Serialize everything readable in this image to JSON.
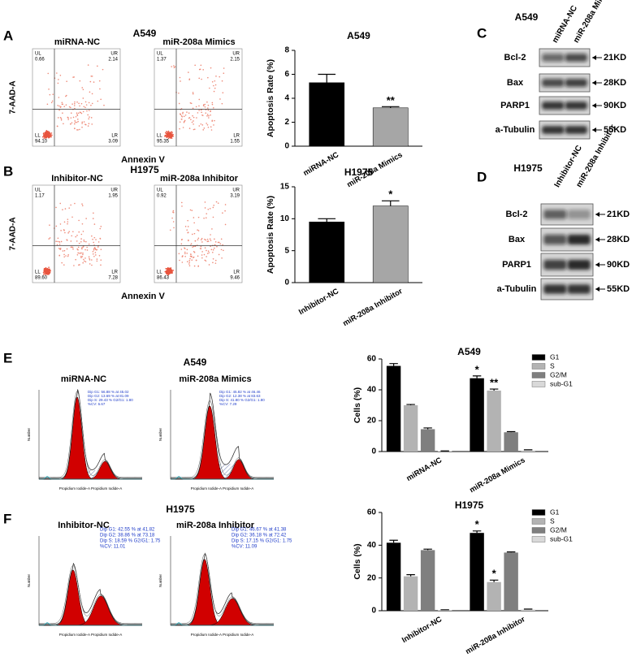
{
  "panel_labels": [
    "A",
    "B",
    "C",
    "D",
    "E",
    "F"
  ],
  "flow": [
    {
      "title": "A549",
      "y_label": "7-AAD-A",
      "x_label": "Annexin V",
      "plots": [
        {
          "name": "miRNA-NC",
          "quadrants": [
            [
              "UL",
              "0.66"
            ],
            [
              "UR",
              "2.14"
            ],
            [
              "LL",
              "94.10"
            ],
            [
              "LR",
              "3.09"
            ]
          ]
        },
        {
          "name": "miR-208a Mimics",
          "quadrants": [
            [
              "UL",
              "1.37"
            ],
            [
              "UR",
              "2.15"
            ],
            [
              "LL",
              "95.35"
            ],
            [
              "LR",
              "1.55"
            ]
          ]
        }
      ]
    },
    {
      "title": "H1975",
      "y_label": "7-AAD-A",
      "x_label": "Annexin V",
      "plots": [
        {
          "name": "Inhibitor-NC",
          "quadrants": [
            [
              "UL",
              "1.17"
            ],
            [
              "UR",
              "1.95"
            ],
            [
              "LL",
              "89.60"
            ],
            [
              "LR",
              "7.28"
            ]
          ]
        },
        {
          "name": "miR-208a Inhibitor",
          "quadrants": [
            [
              "UL",
              "0.92"
            ],
            [
              "UR",
              "3.19"
            ],
            [
              "LL",
              "86.43"
            ],
            [
              "LR",
              "9.46"
            ]
          ]
        }
      ]
    }
  ],
  "blots": [
    {
      "title": "A549",
      "columns": [
        "miRNA-NC",
        "miR-208a Mimics"
      ],
      "rows": [
        {
          "protein": "Bcl-2",
          "size": "21KD"
        },
        {
          "protein": "Bax",
          "size": "28KD"
        },
        {
          "protein": "PARP1",
          "size": "90KD"
        },
        {
          "protein": "a-Tubulin",
          "size": "55KD"
        }
      ]
    },
    {
      "title": "H1975",
      "columns": [
        "Inhibitor-NC",
        "miR-208a Inhibitor"
      ],
      "rows": [
        {
          "protein": "Bcl-2",
          "size": "21KD"
        },
        {
          "protein": "Bax",
          "size": "28KD"
        },
        {
          "protein": "PARP1",
          "size": "90KD"
        },
        {
          "protein": "a-Tubulin",
          "size": "55KD"
        }
      ]
    }
  ],
  "cell_cycle": [
    {
      "title": "A549",
      "x_label": "Propidium Iodide-A Propidium Iodide-A",
      "y_label": "Number",
      "plots": [
        {
          "name": "miRNA-NC",
          "stats": [
            "Dip G1: 56.88 % at 45.02",
            "Dip G2: 13.69 % at 81.09",
            "Dip S: 29.43 %  G2/G1: 1.80",
            "%CV: 6.67"
          ]
        },
        {
          "name": "miR-208a Mimics",
          "stats": [
            "Dip G1: 45.82 % at 46.46",
            "Dip G2: 12.38 % at 83.63",
            "Dip S: 41.80 %  G2/G1: 1.80",
            "%CV: 7.29"
          ]
        }
      ]
    },
    {
      "title": "H1975",
      "x_label": "Propidium Iodide-A Propidium Iodide-A",
      "y_label": "Number",
      "plots": [
        {
          "name": "Inhibitor-NC",
          "stats": [
            "Dip G1: 42.55 % at 41.82",
            "Dip G2: 38.86 % at 73.18",
            "Dip S: 18.59 %  G2/G1: 1.75",
            "%CV: 11.01"
          ]
        },
        {
          "name": "miR-208a Inhibitor",
          "stats": [
            "Dip G1: 46.67 % at 41.38",
            "Dip G2: 36.18 % at 72.42",
            "Dip S: 17.15 %  G2/G1: 1.75",
            "%CV: 11.09"
          ]
        }
      ]
    }
  ],
  "chart_data": [
    {
      "type": "bar",
      "title": "A549",
      "y_label": "Apoptosis Rate (%)",
      "categories": [
        "miRNA-NC",
        "miR-208a Mimics"
      ],
      "values": [
        5.3,
        3.2
      ],
      "errors": [
        0.7,
        0.1
      ],
      "colors": [
        "#000000",
        "#a6a6a6"
      ],
      "ylim": [
        0,
        8
      ],
      "yticks": [
        0,
        2,
        4,
        6,
        8
      ],
      "annotations": [
        {
          "text": "**",
          "category": "miR-208a Mimics"
        }
      ]
    },
    {
      "type": "bar",
      "title": "H1975",
      "y_label": "Apoptosis Rate (%)",
      "categories": [
        "Inhibitor-NC",
        "miR-208a Inhibitor"
      ],
      "values": [
        9.5,
        12.0
      ],
      "errors": [
        0.5,
        0.8
      ],
      "colors": [
        "#000000",
        "#a6a6a6"
      ],
      "ylim": [
        0,
        15
      ],
      "yticks": [
        0,
        5,
        10,
        15
      ],
      "annotations": [
        {
          "text": "*",
          "category": "miR-208a Inhibitor"
        }
      ]
    },
    {
      "type": "grouped_bar",
      "title": "A549",
      "y_label": "Cells (%)",
      "categories": [
        "miRNA-NC",
        "miR-208a Mimics"
      ],
      "series": [
        {
          "name": "G1",
          "color": "#000000",
          "values": [
            55.5,
            47.5
          ],
          "errors": [
            1.5,
            1.5
          ]
        },
        {
          "name": "S",
          "color": "#b3b3b3",
          "values": [
            30,
            39.5
          ],
          "errors": [
            0.5,
            1
          ]
        },
        {
          "name": "G2/M",
          "color": "#7f7f7f",
          "values": [
            14.5,
            12.5
          ],
          "errors": [
            0.8,
            0.4
          ]
        },
        {
          "name": "sub-G1",
          "color": "#d9d9d9",
          "values": [
            0.3,
            0.8
          ],
          "errors": [
            0.1,
            0.3
          ]
        }
      ],
      "ylim": [
        0,
        60
      ],
      "yticks": [
        0,
        20,
        40,
        60
      ],
      "annotations": [
        {
          "text": "*",
          "category": "miR-208a Mimics",
          "series": "G1"
        },
        {
          "text": "**",
          "category": "miR-208a Mimics",
          "series": "S"
        }
      ]
    },
    {
      "type": "grouped_bar",
      "title": "H1975",
      "y_label": "Cells (%)",
      "categories": [
        "Inhibitor-NC",
        "miR-208a Inhibitor"
      ],
      "series": [
        {
          "name": "G1",
          "color": "#000000",
          "values": [
            41.5,
            47.5
          ],
          "errors": [
            1.5,
            1.2
          ]
        },
        {
          "name": "S",
          "color": "#b3b3b3",
          "values": [
            21,
            17.5
          ],
          "errors": [
            1,
            1.2
          ]
        },
        {
          "name": "G2/M",
          "color": "#7f7f7f",
          "values": [
            37,
            35.5
          ],
          "errors": [
            0.6,
            0.4
          ]
        },
        {
          "name": "sub-G1",
          "color": "#d9d9d9",
          "values": [
            0.5,
            0.8
          ],
          "errors": [
            0.1,
            0.2
          ]
        }
      ],
      "ylim": [
        0,
        60
      ],
      "yticks": [
        0,
        20,
        40,
        60
      ],
      "annotations": [
        {
          "text": "*",
          "category": "miR-208a Inhibitor",
          "series": "G1"
        },
        {
          "text": "*",
          "category": "miR-208a Inhibitor",
          "series": "S"
        }
      ]
    }
  ]
}
